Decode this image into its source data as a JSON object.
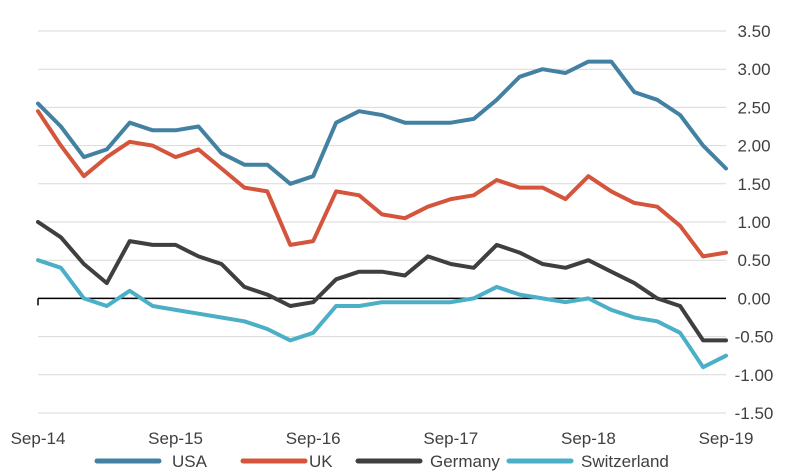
{
  "chart_data": {
    "type": "line",
    "title": "",
    "xlabel": "",
    "ylabel": "",
    "y_axis_position": "right",
    "ylim": [
      -1.5,
      3.5
    ],
    "yticks": [
      3.5,
      3.0,
      2.5,
      2.0,
      1.5,
      1.0,
      0.5,
      0.0,
      -0.5,
      -1.0,
      -1.5
    ],
    "ytick_labels": [
      "3.50",
      "3.00",
      "2.50",
      "2.00",
      "1.50",
      "1.00",
      "0.50",
      "0.00",
      "-0.50",
      "-1.00",
      "-1.50"
    ],
    "xlim": [
      "2014-09",
      "2019-09"
    ],
    "xticks": [
      "2014-09",
      "2015-09",
      "2016-09",
      "2017-09",
      "2018-09",
      "2019-09"
    ],
    "xtick_labels": [
      "Sep-14",
      "Sep-15",
      "Sep-16",
      "Sep-17",
      "Sep-18",
      "Sep-19"
    ],
    "grid": true,
    "legend_position": "bottom",
    "x": [
      "2014-09",
      "2014-11",
      "2015-01",
      "2015-03",
      "2015-05",
      "2015-07",
      "2015-09",
      "2015-11",
      "2016-01",
      "2016-03",
      "2016-05",
      "2016-07",
      "2016-09",
      "2016-11",
      "2017-01",
      "2017-03",
      "2017-05",
      "2017-07",
      "2017-09",
      "2017-11",
      "2018-01",
      "2018-03",
      "2018-05",
      "2018-07",
      "2018-09",
      "2018-11",
      "2019-01",
      "2019-03",
      "2019-05",
      "2019-07",
      "2019-09"
    ],
    "series": [
      {
        "name": "USA",
        "color": "#4381a3",
        "values": [
          2.55,
          2.25,
          1.85,
          1.95,
          2.3,
          2.2,
          2.2,
          2.25,
          1.9,
          1.75,
          1.75,
          1.5,
          1.6,
          2.3,
          2.45,
          2.4,
          2.3,
          2.3,
          2.3,
          2.35,
          2.6,
          2.9,
          3.0,
          2.95,
          3.1,
          3.1,
          2.7,
          2.6,
          2.4,
          2.0,
          1.7
        ]
      },
      {
        "name": "UK",
        "color": "#d4553c",
        "values": [
          2.45,
          2.0,
          1.6,
          1.85,
          2.05,
          2.0,
          1.85,
          1.95,
          1.7,
          1.45,
          1.4,
          0.7,
          0.75,
          1.4,
          1.35,
          1.1,
          1.05,
          1.2,
          1.3,
          1.35,
          1.55,
          1.45,
          1.45,
          1.3,
          1.6,
          1.4,
          1.25,
          1.2,
          0.95,
          0.55,
          0.6
        ]
      },
      {
        "name": "Germany",
        "color": "#3f3f3f",
        "values": [
          1.0,
          0.8,
          0.45,
          0.2,
          0.75,
          0.7,
          0.7,
          0.55,
          0.45,
          0.15,
          0.05,
          -0.1,
          -0.05,
          0.25,
          0.35,
          0.35,
          0.3,
          0.55,
          0.45,
          0.4,
          0.7,
          0.6,
          0.45,
          0.4,
          0.5,
          0.35,
          0.2,
          0.0,
          -0.1,
          -0.55,
          -0.55
        ]
      },
      {
        "name": "Switzerland",
        "color": "#4bafc8",
        "values": [
          0.5,
          0.4,
          0.0,
          -0.1,
          0.1,
          -0.1,
          -0.15,
          -0.2,
          -0.25,
          -0.3,
          -0.4,
          -0.55,
          -0.45,
          -0.1,
          -0.1,
          -0.05,
          -0.05,
          -0.05,
          -0.05,
          0.0,
          0.15,
          0.05,
          0.0,
          -0.05,
          0.0,
          -0.15,
          -0.25,
          -0.3,
          -0.45,
          -0.9,
          -0.75
        ]
      }
    ]
  }
}
